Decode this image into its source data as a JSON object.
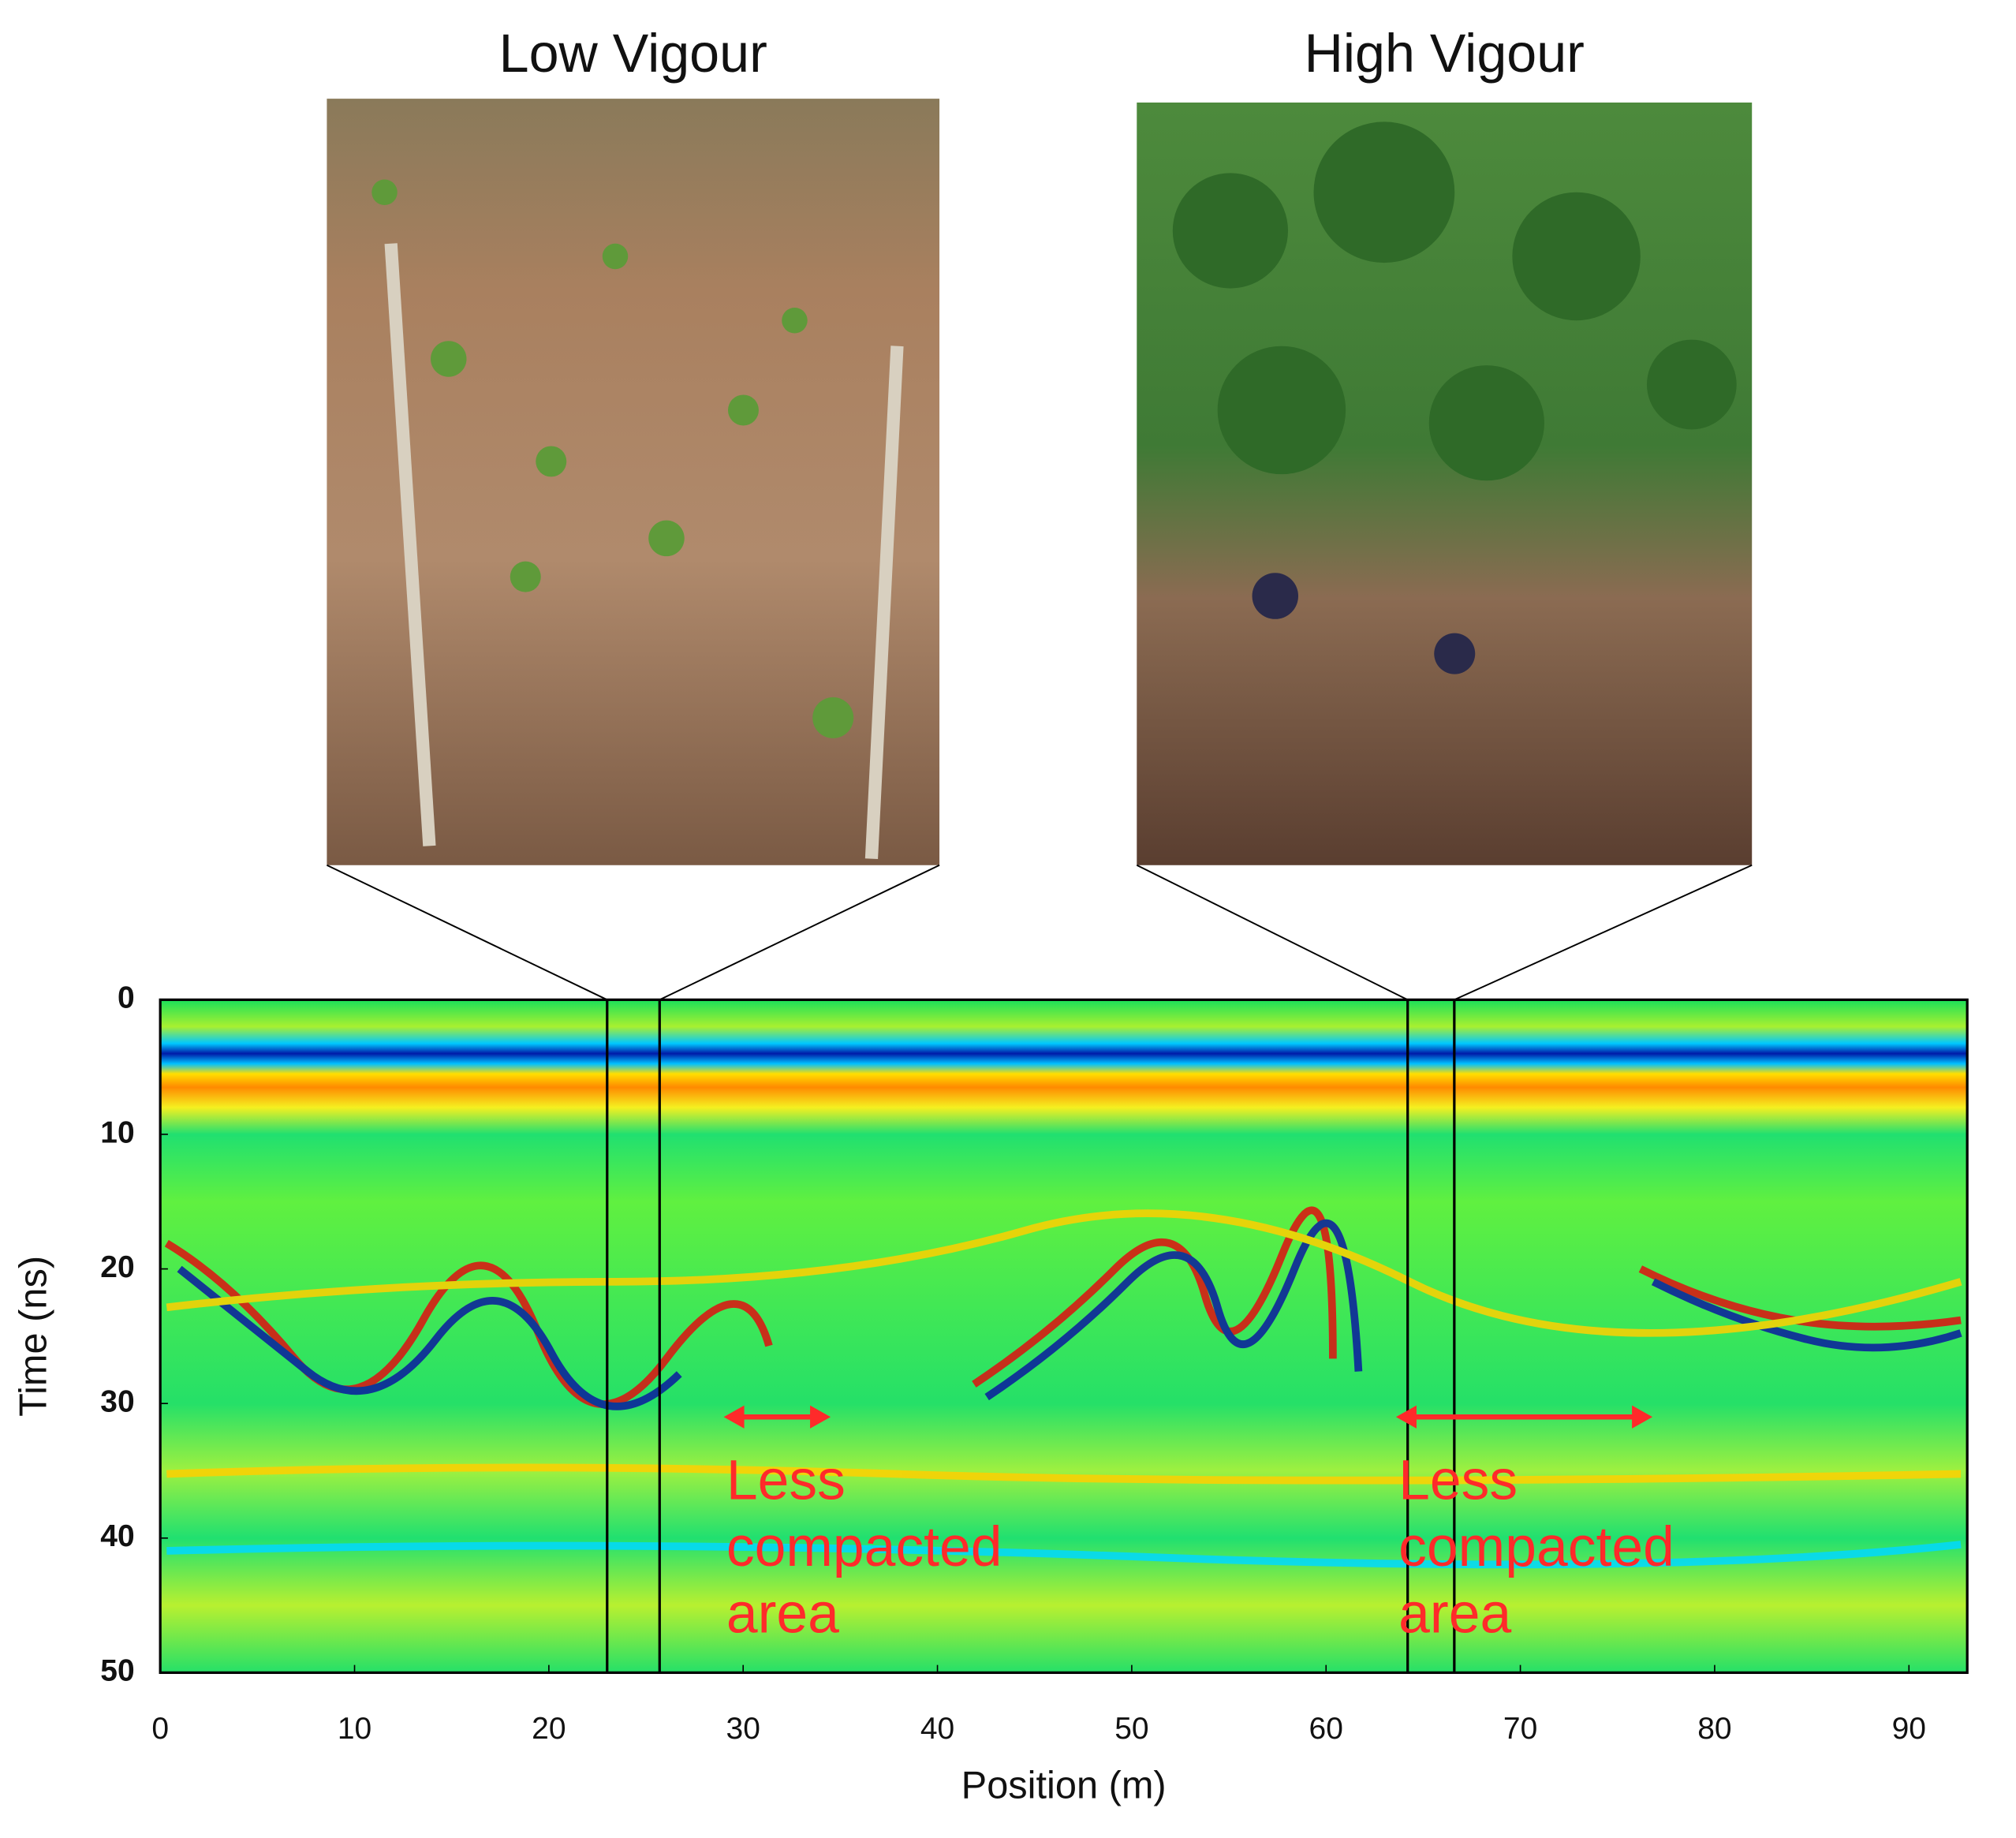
{
  "chart_data": {
    "type": "radargram",
    "photos": [
      {
        "title": "Low Vigour",
        "window": [
          23,
          25.7
        ]
      },
      {
        "title": "High Vigour",
        "window": [
          64.2,
          66.6
        ]
      }
    ],
    "xlabel": "Position (m)",
    "ylabel": "Time (ns)",
    "xlim": [
      0,
      93
    ],
    "ylim": [
      0,
      50
    ],
    "xticks": [
      0,
      10,
      20,
      30,
      40,
      50,
      60,
      70,
      80,
      90
    ],
    "yticks": [
      0,
      10,
      20,
      30,
      40,
      50
    ],
    "annotations": [
      {
        "lines": [
          "Less",
          "compacted",
          "area"
        ],
        "arrow": [
          29,
          34.5
        ],
        "arrow_y": 31,
        "color": "#ff2a2a"
      },
      {
        "lines": [
          "Less",
          "compacted",
          "area"
        ],
        "arrow": [
          63.6,
          76.8
        ],
        "arrow_y": 31,
        "color": "#ff2a2a"
      }
    ]
  }
}
